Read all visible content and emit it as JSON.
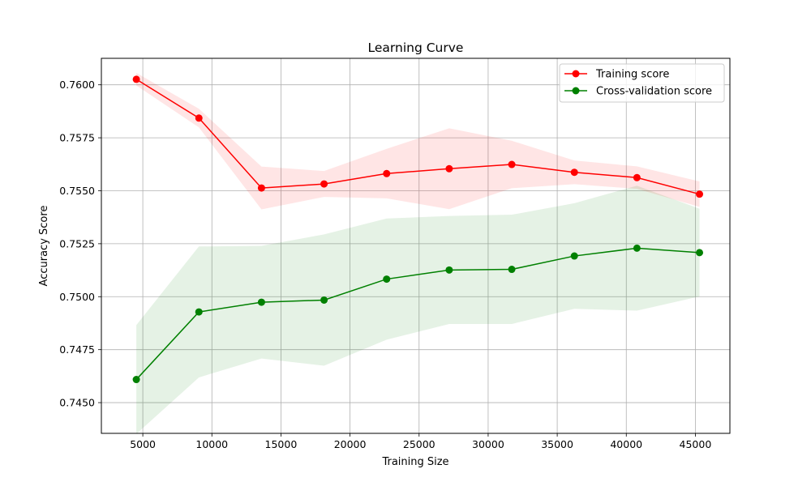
{
  "chart_data": {
    "type": "line",
    "title": "Learning Curve",
    "xlabel": "Training Size",
    "ylabel": "Accuracy Score",
    "xlim": [
      2000,
      47500
    ],
    "ylim": [
      0.74355,
      0.76125
    ],
    "xticks": [
      5000,
      10000,
      15000,
      20000,
      25000,
      30000,
      35000,
      40000,
      45000
    ],
    "xtick_labels": [
      "5000",
      "10000",
      "15000",
      "20000",
      "25000",
      "30000",
      "35000",
      "40000",
      "45000"
    ],
    "yticks": [
      0.745,
      0.7475,
      0.75,
      0.7525,
      0.755,
      0.7575,
      0.76
    ],
    "ytick_labels": [
      "0.7450",
      "0.7475",
      "0.7500",
      "0.7525",
      "0.7550",
      "0.7575",
      "0.7600"
    ],
    "grid": true,
    "legend_position": "top-right",
    "x": [
      4530,
      9060,
      13590,
      18120,
      22650,
      27180,
      31710,
      36240,
      40770,
      45300
    ],
    "series": [
      {
        "name": "Training score",
        "color": "#ff0000",
        "band_color": "#ff0000",
        "values": [
          0.76026,
          0.75843,
          0.75513,
          0.75532,
          0.75581,
          0.75604,
          0.75624,
          0.75587,
          0.75562,
          0.75484
        ],
        "lower": [
          0.75997,
          0.75799,
          0.75412,
          0.75471,
          0.75464,
          0.75413,
          0.75512,
          0.75531,
          0.75509,
          0.75424
        ],
        "upper": [
          0.76056,
          0.75887,
          0.75614,
          0.75593,
          0.75698,
          0.75795,
          0.75736,
          0.75643,
          0.75615,
          0.75544
        ]
      },
      {
        "name": "Cross-validation score",
        "color": "#008000",
        "band_color": "#008000",
        "values": [
          0.74609,
          0.74928,
          0.74974,
          0.74984,
          0.75083,
          0.75126,
          0.75129,
          0.75192,
          0.75229,
          0.75208
        ],
        "lower": [
          0.74352,
          0.74619,
          0.74708,
          0.74674,
          0.74797,
          0.74871,
          0.74871,
          0.74943,
          0.74934,
          0.75001
        ],
        "upper": [
          0.74866,
          0.75237,
          0.7524,
          0.75294,
          0.75369,
          0.75381,
          0.75387,
          0.75441,
          0.75524,
          0.75415
        ]
      }
    ]
  }
}
